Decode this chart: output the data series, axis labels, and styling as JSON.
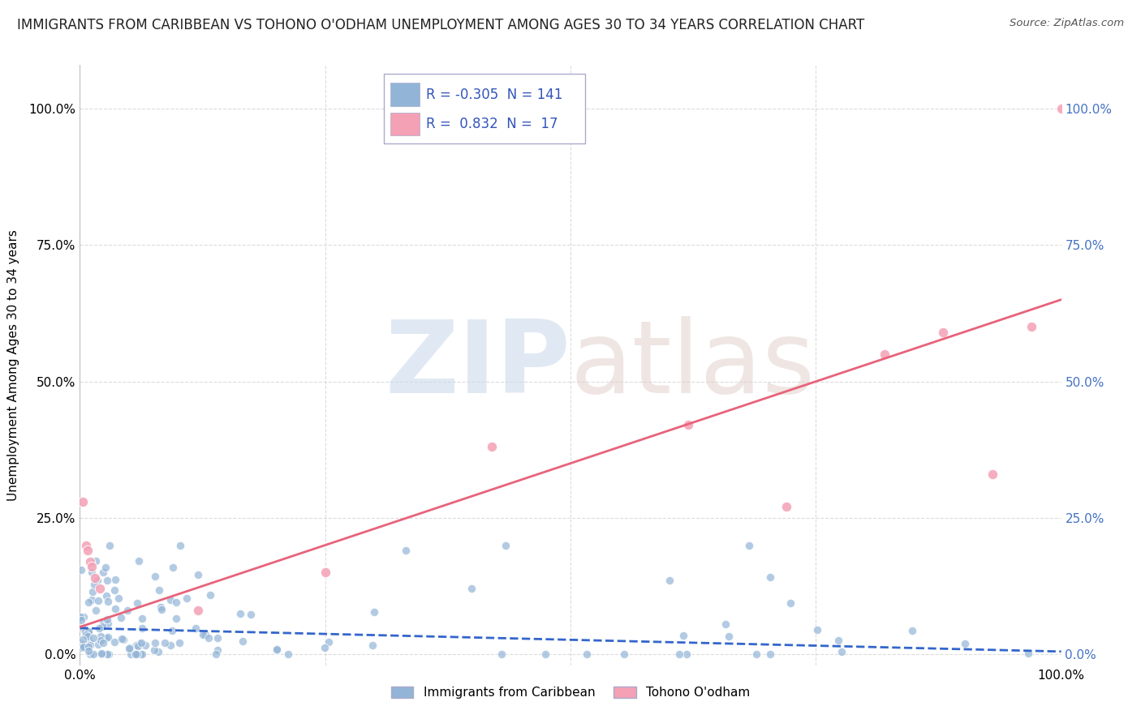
{
  "title": "IMMIGRANTS FROM CARIBBEAN VS TOHONO O'ODHAM UNEMPLOYMENT AMONG AGES 30 TO 34 YEARS CORRELATION CHART",
  "source": "Source: ZipAtlas.com",
  "ylabel": "Unemployment Among Ages 30 to 34 years",
  "xlim": [
    0.0,
    1.0
  ],
  "ylim": [
    -0.02,
    1.08
  ],
  "xtick_positions": [
    0.0,
    1.0
  ],
  "xtick_labels": [
    "0.0%",
    "100.0%"
  ],
  "ytick_positions": [
    0.0,
    0.25,
    0.5,
    0.75,
    1.0
  ],
  "ytick_labels": [
    "0.0%",
    "25.0%",
    "50.0%",
    "75.0%",
    "100.0%"
  ],
  "blue_R": "-0.305",
  "blue_N": "141",
  "pink_R": "0.832",
  "pink_N": "17",
  "blue_color": "#92b4d7",
  "blue_line_color": "#3366cc",
  "pink_color": "#f4a0b5",
  "pink_line_color": "#e8637a",
  "background_color": "#ffffff",
  "grid_color": "#d8d8d8",
  "right_axis_color": "#4472c4",
  "legend_label_blue": "Immigrants from Caribbean",
  "legend_label_pink": "Tohono O'odham",
  "blue_line_y_start": 0.048,
  "blue_line_y_end": 0.005,
  "pink_line_y_start": 0.05,
  "pink_line_y_end": 0.65,
  "title_fontsize": 12,
  "axis_fontsize": 11,
  "legend_text_color": "#3355bb"
}
